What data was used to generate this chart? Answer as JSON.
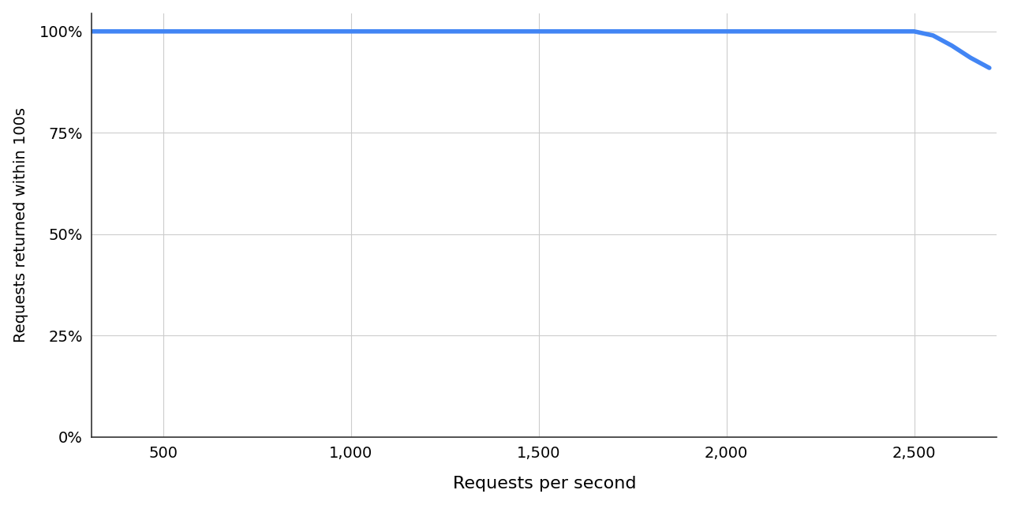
{
  "x": [
    300,
    500,
    750,
    1000,
    1250,
    1500,
    1750,
    2000,
    2250,
    2500,
    2550,
    2600,
    2650,
    2700
  ],
  "y": [
    1.0,
    1.0,
    1.0,
    1.0,
    1.0,
    1.0,
    1.0,
    1.0,
    1.0,
    1.0,
    0.99,
    0.965,
    0.935,
    0.91
  ],
  "line_color": "#4285F4",
  "line_width": 4.0,
  "xlabel": "Requests per second",
  "ylabel": "Requests returned within 100s",
  "xlim": [
    310,
    2720
  ],
  "ylim": [
    0,
    1.045
  ],
  "xticks": [
    500,
    1000,
    1500,
    2000,
    2500
  ],
  "yticks": [
    0,
    0.25,
    0.5,
    0.75,
    1.0
  ],
  "ytick_labels": [
    "0%",
    "25%",
    "50%",
    "75%",
    "100%"
  ],
  "xtick_labels": [
    "500",
    "1,000",
    "1,500",
    "2,000",
    "2,500"
  ],
  "background_color": "#ffffff",
  "grid_color": "#cccccc",
  "xlabel_fontsize": 16,
  "ylabel_fontsize": 14,
  "tick_fontsize": 14
}
